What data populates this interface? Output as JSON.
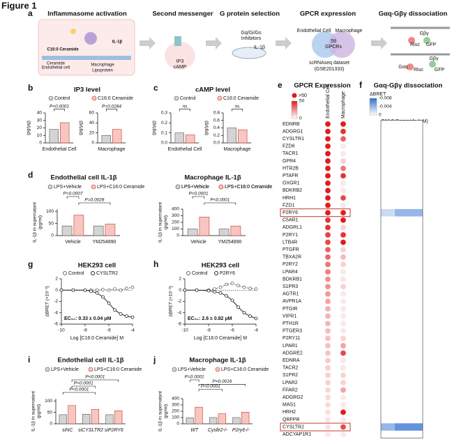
{
  "figure_title": "Figure 1",
  "panel_a": {
    "label": "a",
    "headers": [
      "Inflammasome activation",
      "Second messenger",
      "G protein selection",
      "GPCR expression",
      "Gαq-Gβγ dissociation"
    ],
    "labels": [
      "C16:0 Ceramide",
      "IL-1β",
      "Endothelial cell",
      "Macrophage",
      "Lipoprotein",
      "Ceramide",
      "IP3",
      "cAMP",
      "Gq/Gi/Gs",
      "Inhibitors",
      "IL-1β",
      "Endothelial Cell",
      "Macrophage",
      "59",
      "GPCRs",
      "scRNAseq dataset",
      "(GSE201333)",
      "Gβγ",
      "Rluc",
      "GFP",
      "Gαq",
      "Rluc",
      "Gβγ",
      "GFP"
    ]
  },
  "panel_b": {
    "label": "b",
    "title": "IP3 level",
    "legend": [
      "Control",
      "C16:0 Ceramide"
    ],
    "subplots": [
      {
        "ylabel": "(pg/μg)",
        "categories": [
          "Endothelial Cell"
        ],
        "values": [
          18,
          27
        ],
        "ylim": [
          0,
          40
        ],
        "yticks": [
          0,
          10,
          20,
          30,
          40
        ],
        "pvalues": [
          "P<0.0001"
        ]
      },
      {
        "ylabel": "(pg/μg)",
        "categories": [
          "Macrophage"
        ],
        "values": [
          15,
          27
        ],
        "ylim": [
          0,
          60
        ],
        "yticks": [
          0,
          20,
          40,
          60
        ],
        "pvalues": [
          "P=0.0284"
        ]
      }
    ]
  },
  "panel_c": {
    "label": "c",
    "title": "cAMP level",
    "legend": [
      "Control",
      "C16:0 Ceramide"
    ],
    "subplots": [
      {
        "ylabel": "(pg/μg)",
        "categories": [
          "Endothelial Cell"
        ],
        "values": [
          0.1,
          0.08
        ],
        "ylim": [
          0,
          0.3
        ],
        "yticks": [
          {
            "value": 0,
            "label": "0.0"
          },
          0.1,
          0.2,
          0.3
        ],
        "pvalues": [
          "ns"
        ]
      },
      {
        "ylabel": "(pg/μg)",
        "categories": [
          "Macrophage"
        ],
        "values": [
          0.4,
          0.35
        ],
        "ylim": [
          0,
          0.8
        ],
        "yticks": [
          {
            "value": 0,
            "label": "0.0"
          },
          0.2,
          0.4,
          0.6,
          0.8
        ],
        "pvalues": [
          "ns"
        ]
      }
    ]
  },
  "panel_d": {
    "label": "d",
    "legend": [
      "LPS+Vehicle",
      "LPS+C16:0 Ceramide"
    ],
    "subplots": [
      {
        "title": "Endothelial cell IL-1β",
        "ylabel": [
          "IL-1β in supernatant",
          "(pg/ml)"
        ],
        "categories": [
          "Vehicle",
          "YM254890"
        ],
        "values": [
          40,
          85,
          40,
          48
        ],
        "ylim": [
          0,
          110
        ],
        "yticks": [
          0,
          50,
          100
        ],
        "pvalues": [
          "P=0.0007",
          "P=0.0028"
        ]
      },
      {
        "title": "Macrophage IL-1β",
        "ylabel": [
          "IL-1β in supernatant",
          "(pg/ml)"
        ],
        "categories": [
          "Vehicle",
          "YM254890"
        ],
        "values": [
          100,
          280,
          100,
          145
        ],
        "ylim": [
          0,
          400
        ],
        "yticks": [
          0,
          100,
          200,
          300,
          400
        ],
        "pvalues": [
          "P<0.0001",
          "P<0.0001"
        ]
      }
    ]
  },
  "panel_g": {
    "label": "g",
    "title": "HEK293 cell",
    "ylabel": "ΔBRET (×10⁻³)",
    "xlabel": "Log [C16:0 Ceramide] M",
    "ec50": "EC₅₀: 0.33 ± 0.04 μM",
    "x": [
      -10,
      -9,
      -8,
      -7.5,
      -7,
      -6.5,
      -6,
      -5.5,
      -5,
      -4.5,
      -4
    ],
    "xlim": [
      -10,
      -4
    ],
    "xticks": [
      -10,
      -8,
      -6,
      -4
    ],
    "ylim": [
      -6,
      2
    ],
    "yticks": [
      -6,
      -4,
      -2,
      0,
      2
    ],
    "series": [
      {
        "name": "Control",
        "color": "#666666",
        "values": [
          0,
          0,
          0,
          0,
          0,
          0.1,
          0,
          0.2,
          0,
          0.3,
          0.5
        ]
      },
      {
        "name": "CYSLTR2",
        "color": "#222222",
        "values": [
          0,
          0,
          0,
          -0.2,
          -0.5,
          -1.2,
          -2.3,
          -3.5,
          -4.2,
          -4.6,
          -4.8
        ]
      }
    ]
  },
  "panel_h": {
    "label": "h",
    "title": "HEK293 cell",
    "ylabel": "ΔBRET (×10⁻³)",
    "xlabel": "Log [C16:0 Ceramide] M",
    "ec50": "EC₅₀: 2.6 ± 0.82 μM",
    "x": [
      -10,
      -9,
      -8,
      -7.5,
      -7,
      -6.5,
      -6,
      -5.5,
      -5,
      -4.5,
      -4
    ],
    "xlim": [
      -10,
      -4
    ],
    "xticks": [
      -10,
      -8,
      -6,
      -4
    ],
    "ylim": [
      -6,
      2
    ],
    "yticks": [
      -6,
      -4,
      -2,
      0,
      2
    ],
    "series": [
      {
        "name": "Control",
        "color": "#666666",
        "values": [
          0,
          0,
          0,
          0.2,
          0.5,
          1,
          1.2,
          0.8,
          0.5,
          0.3,
          0.2
        ]
      },
      {
        "name": "P2RY6",
        "color": "#222222",
        "values": [
          0,
          0,
          -0.1,
          -0.3,
          -0.5,
          -1,
          -1.8,
          -3,
          -4,
          -4.6,
          -5
        ]
      }
    ]
  },
  "panel_i": {
    "label": "i",
    "title": "Endothelial cell IL-1β",
    "legend": [
      "LPS+Vehicle",
      "LPS+C16:0 Ceramide"
    ],
    "ylabel": [
      "IL-1β in supernatant",
      "(pg/ml)"
    ],
    "categories": [
      "siNC",
      "siCYSLTR2",
      "siP2RY6"
    ],
    "values": [
      40,
      80,
      42,
      63,
      40,
      57
    ],
    "ylim": [
      0,
      110
    ],
    "yticks": [
      0,
      50,
      100
    ],
    "pvalues": [
      "P<0.0001",
      "P<0.0001",
      "P<0.0001"
    ]
  },
  "panel_j": {
    "label": "j",
    "title": "Macrophage IL-1β",
    "legend": [
      "LPS+Vehicle",
      "LPS+C16:0 Ceramide"
    ],
    "ylabel": [
      "IL-1β in supernatant",
      "(pg/ml)"
    ],
    "categories": [
      "WT",
      "Cysltr2-/-",
      "P2ry6-/-"
    ],
    "values": [
      95,
      265,
      100,
      160,
      100,
      185
    ],
    "ylim": [
      0,
      400
    ],
    "yticks": [
      0,
      100,
      200,
      300,
      400
    ],
    "pvalues": [
      "P=0.0001",
      "P=0.0016",
      "P<0.0001"
    ]
  },
  "panel_e": {
    "label": "e",
    "title": "GPCR Expression",
    "max_label": ">50",
    "color_ticks": [
      0,
      50
    ],
    "columns": [
      "Endothelial Cell",
      "Macrophage"
    ],
    "rows": [
      "EDNRB",
      "ADGRG1",
      "CYSLTR1",
      "FZD6",
      "TACR1",
      "GPR4",
      "HTR2B",
      "PTAFR",
      "OXGR1",
      "BDKRB2",
      "HRH1",
      "FZD1",
      "P2RY6",
      "C5AR1",
      "ADGRL1",
      "P2RY1",
      "LTB4R",
      "PTGFR",
      "TBXA2R",
      "P2RY2",
      "LPAR4",
      "BDKRB1",
      "S1PR3",
      "AGTR1",
      "AVPR1A",
      "PTGIR",
      "VIPR1",
      "PTH1R",
      "PTGER3",
      "P2RY11",
      "LPAR1",
      "ADGRE2",
      "EDNRA",
      "TACR2",
      "S1PR2",
      "LPAR2",
      "FFAR2",
      "ADGRG2",
      "MAS1",
      "HRH2",
      "QRFPR",
      "CYSLTR2",
      "ADCYAP1R1"
    ],
    "endothelial": [
      60,
      60,
      60,
      60,
      58,
      58,
      55,
      55,
      55,
      55,
      52,
      52,
      50,
      45,
      45,
      42,
      40,
      35,
      33,
      30,
      28,
      25,
      24,
      22,
      20,
      18,
      17,
      16,
      15,
      14,
      14,
      13,
      12,
      11,
      10,
      10,
      9,
      8,
      8,
      7,
      6,
      6,
      5
    ],
    "macrophage": [
      50,
      45,
      35,
      5,
      5,
      10,
      30,
      45,
      5,
      5,
      40,
      5,
      50,
      50,
      10,
      45,
      50,
      10,
      15,
      10,
      5,
      5,
      10,
      5,
      5,
      5,
      5,
      5,
      5,
      10,
      20,
      40,
      5,
      5,
      10,
      10,
      20,
      5,
      5,
      50,
      5,
      40,
      5
    ]
  },
  "panel_f": {
    "label": "f",
    "title": "Gαq-Gβγ dissociation",
    "legend_title": "ΔBRET",
    "color_ticks": [
      -0.008,
      -0.004,
      0
    ],
    "xlabel": "C16:0 Ceramide (μM)",
    "columns": [
      0.2,
      2,
      4
    ],
    "values": [
      [
        0,
        0,
        0
      ],
      [
        0,
        0,
        0
      ],
      [
        0,
        0,
        0
      ],
      [
        0,
        0,
        0
      ],
      [
        0,
        0,
        0
      ],
      [
        0,
        0,
        0
      ],
      [
        0,
        0,
        0
      ],
      [
        0,
        0,
        0
      ],
      [
        0,
        0,
        0
      ],
      [
        0,
        0,
        0
      ],
      [
        0,
        0,
        0
      ],
      [
        0,
        0,
        0
      ],
      [
        -0.002,
        -0.004,
        -0.004
      ],
      [
        0,
        0,
        0
      ],
      [
        0,
        0,
        0
      ],
      [
        0,
        0,
        0
      ],
      [
        0,
        0,
        0
      ],
      [
        0,
        0,
        0
      ],
      [
        0,
        0,
        0
      ],
      [
        0,
        0,
        0
      ],
      [
        0,
        0,
        0
      ],
      [
        0,
        0,
        0
      ],
      [
        0,
        0,
        0
      ],
      [
        0,
        0,
        0
      ],
      [
        0,
        0,
        0
      ],
      [
        0,
        0,
        0
      ],
      [
        0,
        0,
        0
      ],
      [
        0,
        0,
        0
      ],
      [
        0,
        0,
        0
      ],
      [
        0,
        0,
        0
      ],
      [
        0,
        0,
        0
      ],
      [
        0,
        0,
        0
      ],
      [
        0,
        0,
        0
      ],
      [
        0,
        0,
        0
      ],
      [
        0,
        0,
        0
      ],
      [
        0,
        0,
        0
      ],
      [
        0,
        0,
        0
      ],
      [
        0,
        0,
        0
      ],
      [
        0,
        0,
        0
      ],
      [
        0,
        0,
        0
      ],
      [
        0,
        0,
        0
      ],
      [
        -0.004,
        -0.006,
        -0.006
      ],
      [
        0,
        0,
        0
      ]
    ]
  }
}
